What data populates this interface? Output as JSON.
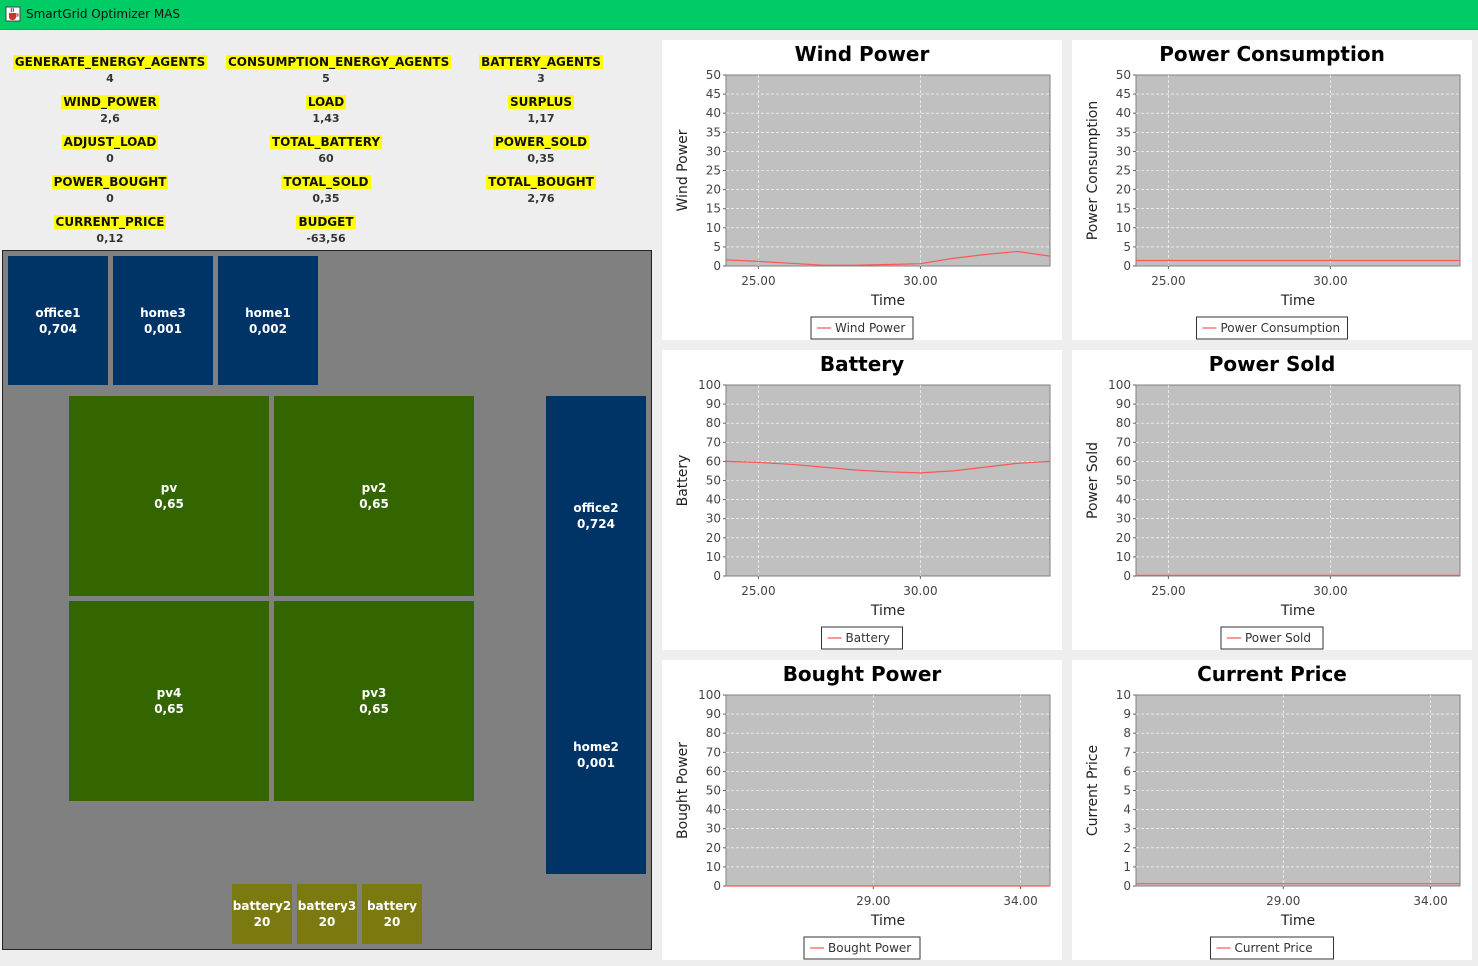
{
  "window": {
    "title": "SmartGrid Optimizer MAS",
    "icon": "java-cup-icon"
  },
  "stats": [
    {
      "id": "generate-energy-agents",
      "label": "GENERATE_ENERGY_AGENTS",
      "value": "4"
    },
    {
      "id": "consumption-energy-agents",
      "label": "CONSUMPTION_ENERGY_AGENTS",
      "value": "5"
    },
    {
      "id": "battery-agents",
      "label": "BATTERY_AGENTS",
      "value": "3"
    },
    {
      "id": "wind-power",
      "label": "WIND_POWER",
      "value": "2,6"
    },
    {
      "id": "load",
      "label": "LOAD",
      "value": "1,43"
    },
    {
      "id": "surplus",
      "label": "SURPLUS",
      "value": "1,17"
    },
    {
      "id": "adjust-load",
      "label": "ADJUST_LOAD",
      "value": "0"
    },
    {
      "id": "total-battery",
      "label": "TOTAL_BATTERY",
      "value": "60"
    },
    {
      "id": "power-sold",
      "label": "POWER_SOLD",
      "value": "0,35"
    },
    {
      "id": "power-bought",
      "label": "POWER_BOUGHT",
      "value": "0"
    },
    {
      "id": "total-sold",
      "label": "TOTAL_SOLD",
      "value": "0,35"
    },
    {
      "id": "total-bought",
      "label": "TOTAL_BOUGHT",
      "value": "2,76"
    },
    {
      "id": "current-price",
      "label": "CURRENT_PRICE",
      "value": "0,12"
    },
    {
      "id": "budget",
      "label": "BUDGET",
      "value": "-63,56"
    }
  ],
  "grid": {
    "blocks": [
      {
        "id": "office1",
        "name": "office1",
        "value": "0,704",
        "kind": "consumer"
      },
      {
        "id": "home3",
        "name": "home3",
        "value": "0,001",
        "kind": "consumer"
      },
      {
        "id": "home1",
        "name": "home1",
        "value": "0,002",
        "kind": "consumer"
      },
      {
        "id": "pv",
        "name": "pv",
        "value": "0,65",
        "kind": "producer"
      },
      {
        "id": "pv2",
        "name": "pv2",
        "value": "0,65",
        "kind": "producer"
      },
      {
        "id": "pv4",
        "name": "pv4",
        "value": "0,65",
        "kind": "producer"
      },
      {
        "id": "pv3",
        "name": "pv3",
        "value": "0,65",
        "kind": "producer"
      },
      {
        "id": "office2",
        "name": "office2",
        "value": "0,724",
        "kind": "consumer"
      },
      {
        "id": "home2",
        "name": "home2",
        "value": "0,001",
        "kind": "consumer"
      },
      {
        "id": "battery2",
        "name": "battery2",
        "value": "20",
        "kind": "battery"
      },
      {
        "id": "battery3",
        "name": "battery3",
        "value": "20",
        "kind": "battery"
      },
      {
        "id": "battery",
        "name": "battery",
        "value": "20",
        "kind": "battery"
      }
    ],
    "colors": {
      "consumer": "#003366",
      "producer": "#336600",
      "battery": "#7a7a10",
      "background": "#808080"
    }
  },
  "chart_data": [
    {
      "id": "wind-power",
      "type": "line",
      "title": "Wind Power",
      "xlabel": "Time",
      "ylabel": "Wind Power",
      "xlim": [
        24,
        34
      ],
      "ylim": [
        0,
        50
      ],
      "yticks": [
        0,
        5,
        10,
        15,
        20,
        25,
        30,
        35,
        40,
        45,
        50
      ],
      "xticks": [
        25,
        30
      ],
      "xtick_labels": [
        "25.00",
        "30.00"
      ],
      "grid": true,
      "legend": "bottom",
      "series": [
        {
          "name": "Wind Power",
          "color": "#ff5555",
          "x": [
            24,
            25,
            26,
            27,
            28,
            29,
            30,
            31,
            32,
            33,
            34
          ],
          "y": [
            1.6,
            1.2,
            0.7,
            0.2,
            0.2,
            0.4,
            0.6,
            2.0,
            3.0,
            3.8,
            2.6
          ]
        }
      ]
    },
    {
      "id": "power-consumption",
      "type": "line",
      "title": "Power Consumption",
      "xlabel": "Time",
      "ylabel": "Power Consumption",
      "xlim": [
        24,
        34
      ],
      "ylim": [
        0,
        50
      ],
      "yticks": [
        0,
        5,
        10,
        15,
        20,
        25,
        30,
        35,
        40,
        45,
        50
      ],
      "xticks": [
        25,
        30
      ],
      "xtick_labels": [
        "25.00",
        "30.00"
      ],
      "grid": true,
      "legend": "bottom",
      "series": [
        {
          "name": "Power Consumption",
          "color": "#ff5555",
          "x": [
            24,
            26,
            28,
            30,
            32,
            34
          ],
          "y": [
            1.43,
            1.43,
            1.43,
            1.43,
            1.43,
            1.43
          ]
        }
      ]
    },
    {
      "id": "battery",
      "type": "line",
      "title": "Battery",
      "xlabel": "Time",
      "ylabel": "Battery",
      "xlim": [
        24,
        34
      ],
      "ylim": [
        0,
        100
      ],
      "yticks": [
        0,
        10,
        20,
        30,
        40,
        50,
        60,
        70,
        80,
        90,
        100
      ],
      "xticks": [
        25,
        30
      ],
      "xtick_labels": [
        "25.00",
        "30.00"
      ],
      "grid": true,
      "legend": "bottom",
      "series": [
        {
          "name": "Battery",
          "color": "#ff5555",
          "x": [
            24,
            25,
            26,
            27,
            28,
            29,
            30,
            31,
            32,
            33,
            34
          ],
          "y": [
            60,
            59.5,
            58.5,
            57,
            55.5,
            54.5,
            54,
            55,
            57,
            59,
            60
          ]
        }
      ]
    },
    {
      "id": "power-sold",
      "type": "line",
      "title": "Power Sold",
      "xlabel": "Time",
      "ylabel": "Power Sold",
      "xlim": [
        24,
        34
      ],
      "ylim": [
        0,
        100
      ],
      "yticks": [
        0,
        10,
        20,
        30,
        40,
        50,
        60,
        70,
        80,
        90,
        100
      ],
      "xticks": [
        25,
        30
      ],
      "xtick_labels": [
        "25.00",
        "30.00"
      ],
      "grid": true,
      "legend": "bottom",
      "series": [
        {
          "name": "Power Sold",
          "color": "#ff5555",
          "x": [
            24,
            26,
            28,
            30,
            32,
            34
          ],
          "y": [
            0.35,
            0.35,
            0.35,
            0.35,
            0.35,
            0.35
          ]
        }
      ]
    },
    {
      "id": "bought-power",
      "type": "line",
      "title": "Bought Power",
      "xlabel": "Time",
      "ylabel": "Bought Power",
      "xlim": [
        24,
        35
      ],
      "ylim": [
        0,
        100
      ],
      "yticks": [
        0,
        10,
        20,
        30,
        40,
        50,
        60,
        70,
        80,
        90,
        100
      ],
      "xticks": [
        29,
        34
      ],
      "xtick_labels": [
        "29.00",
        "34.00"
      ],
      "grid": true,
      "legend": "bottom",
      "series": [
        {
          "name": "Bought Power",
          "color": "#ff5555",
          "x": [
            24,
            26,
            28,
            30,
            32,
            35
          ],
          "y": [
            0,
            0,
            0,
            0,
            0,
            0
          ]
        }
      ]
    },
    {
      "id": "current-price",
      "type": "line",
      "title": "Current Price",
      "xlabel": "Time",
      "ylabel": "Current Price",
      "xlim": [
        24,
        35
      ],
      "ylim": [
        0,
        10
      ],
      "yticks": [
        0,
        1,
        2,
        3,
        4,
        5,
        6,
        7,
        8,
        9,
        10
      ],
      "xticks": [
        29,
        34
      ],
      "xtick_labels": [
        "29.00",
        "34.00"
      ],
      "grid": true,
      "legend": "bottom",
      "series": [
        {
          "name": "Current Price",
          "color": "#ff5555",
          "x": [
            24,
            26,
            28,
            30,
            32,
            35
          ],
          "y": [
            0.12,
            0.12,
            0.12,
            0.12,
            0.12,
            0.12
          ]
        }
      ]
    }
  ]
}
